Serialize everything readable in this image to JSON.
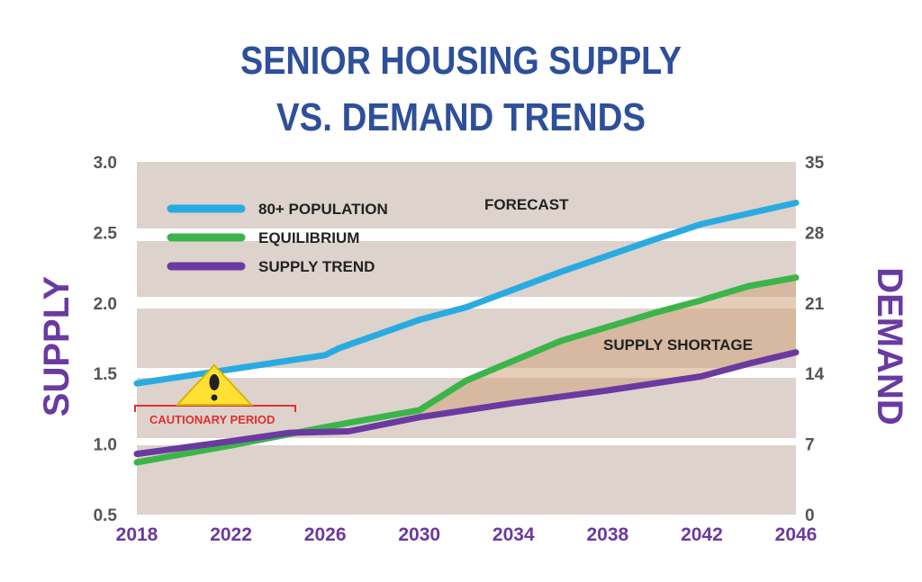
{
  "title_lines": [
    "SENIOR HOUSING SUPPLY",
    "VS. DEMAND TRENDS"
  ],
  "chart_data": {
    "type": "line",
    "title": "SENIOR HOUSING SUPPLY VS. DEMAND TRENDS",
    "xlabel": "",
    "ylabel_left": "SUPPLY",
    "ylabel_right": "DEMAND",
    "x_ticks": [
      "2018",
      "2022",
      "2026",
      "2030",
      "2034",
      "2038",
      "2042",
      "2046"
    ],
    "xlim": [
      2018,
      2046
    ],
    "y_left_ticks": [
      "0.5",
      "1.0",
      "1.5",
      "2.0",
      "2.5",
      "3.0"
    ],
    "y_left_range": [
      0.5,
      3.0
    ],
    "y_right_ticks": [
      "0",
      "7",
      "14",
      "21",
      "28",
      "35"
    ],
    "y_right_range": [
      0,
      35
    ],
    "grid": false,
    "legend_position": "top-left",
    "series": [
      {
        "name": "80+ POPULATION",
        "color": "#29abe2",
        "x": [
          2018,
          2022,
          2026,
          2026.6,
          2030,
          2032,
          2036,
          2040,
          2042,
          2046
        ],
        "y": [
          1.43,
          1.53,
          1.63,
          1.68,
          1.88,
          1.97,
          2.22,
          2.45,
          2.56,
          2.71
        ]
      },
      {
        "name": "EQUILIBRIUM",
        "color": "#3bb54a",
        "x": [
          2018,
          2022,
          2026,
          2030,
          2032,
          2036,
          2040,
          2042,
          2044,
          2046
        ],
        "y": [
          0.87,
          0.99,
          1.12,
          1.24,
          1.45,
          1.73,
          1.93,
          2.02,
          2.12,
          2.18
        ]
      },
      {
        "name": "SUPPLY TREND",
        "color": "#6a3aa0",
        "x": [
          2018,
          2022,
          2024.5,
          2027,
          2030,
          2034,
          2038,
          2042,
          2044,
          2046
        ],
        "y": [
          0.93,
          1.02,
          1.08,
          1.09,
          1.19,
          1.29,
          1.38,
          1.48,
          1.57,
          1.65
        ]
      }
    ],
    "annotations": {
      "forecast": "FORECAST",
      "shortage": "SUPPLY SHORTAGE",
      "caution": "CAUTIONARY PERIOD"
    },
    "shortage_between": [
      "EQUILIBRIUM",
      "SUPPLY TREND"
    ],
    "shortage_from_x": 2030
  },
  "colors": {
    "title": "#2e4f99",
    "axis_names": "#6a3aa0",
    "background_band": "#ddd2cc",
    "shortage_fill": "#cfa47c",
    "caution": "#e03030",
    "warning_fill": "#ffe033"
  },
  "icons": {
    "warning": "warning-triangle-icon"
  }
}
